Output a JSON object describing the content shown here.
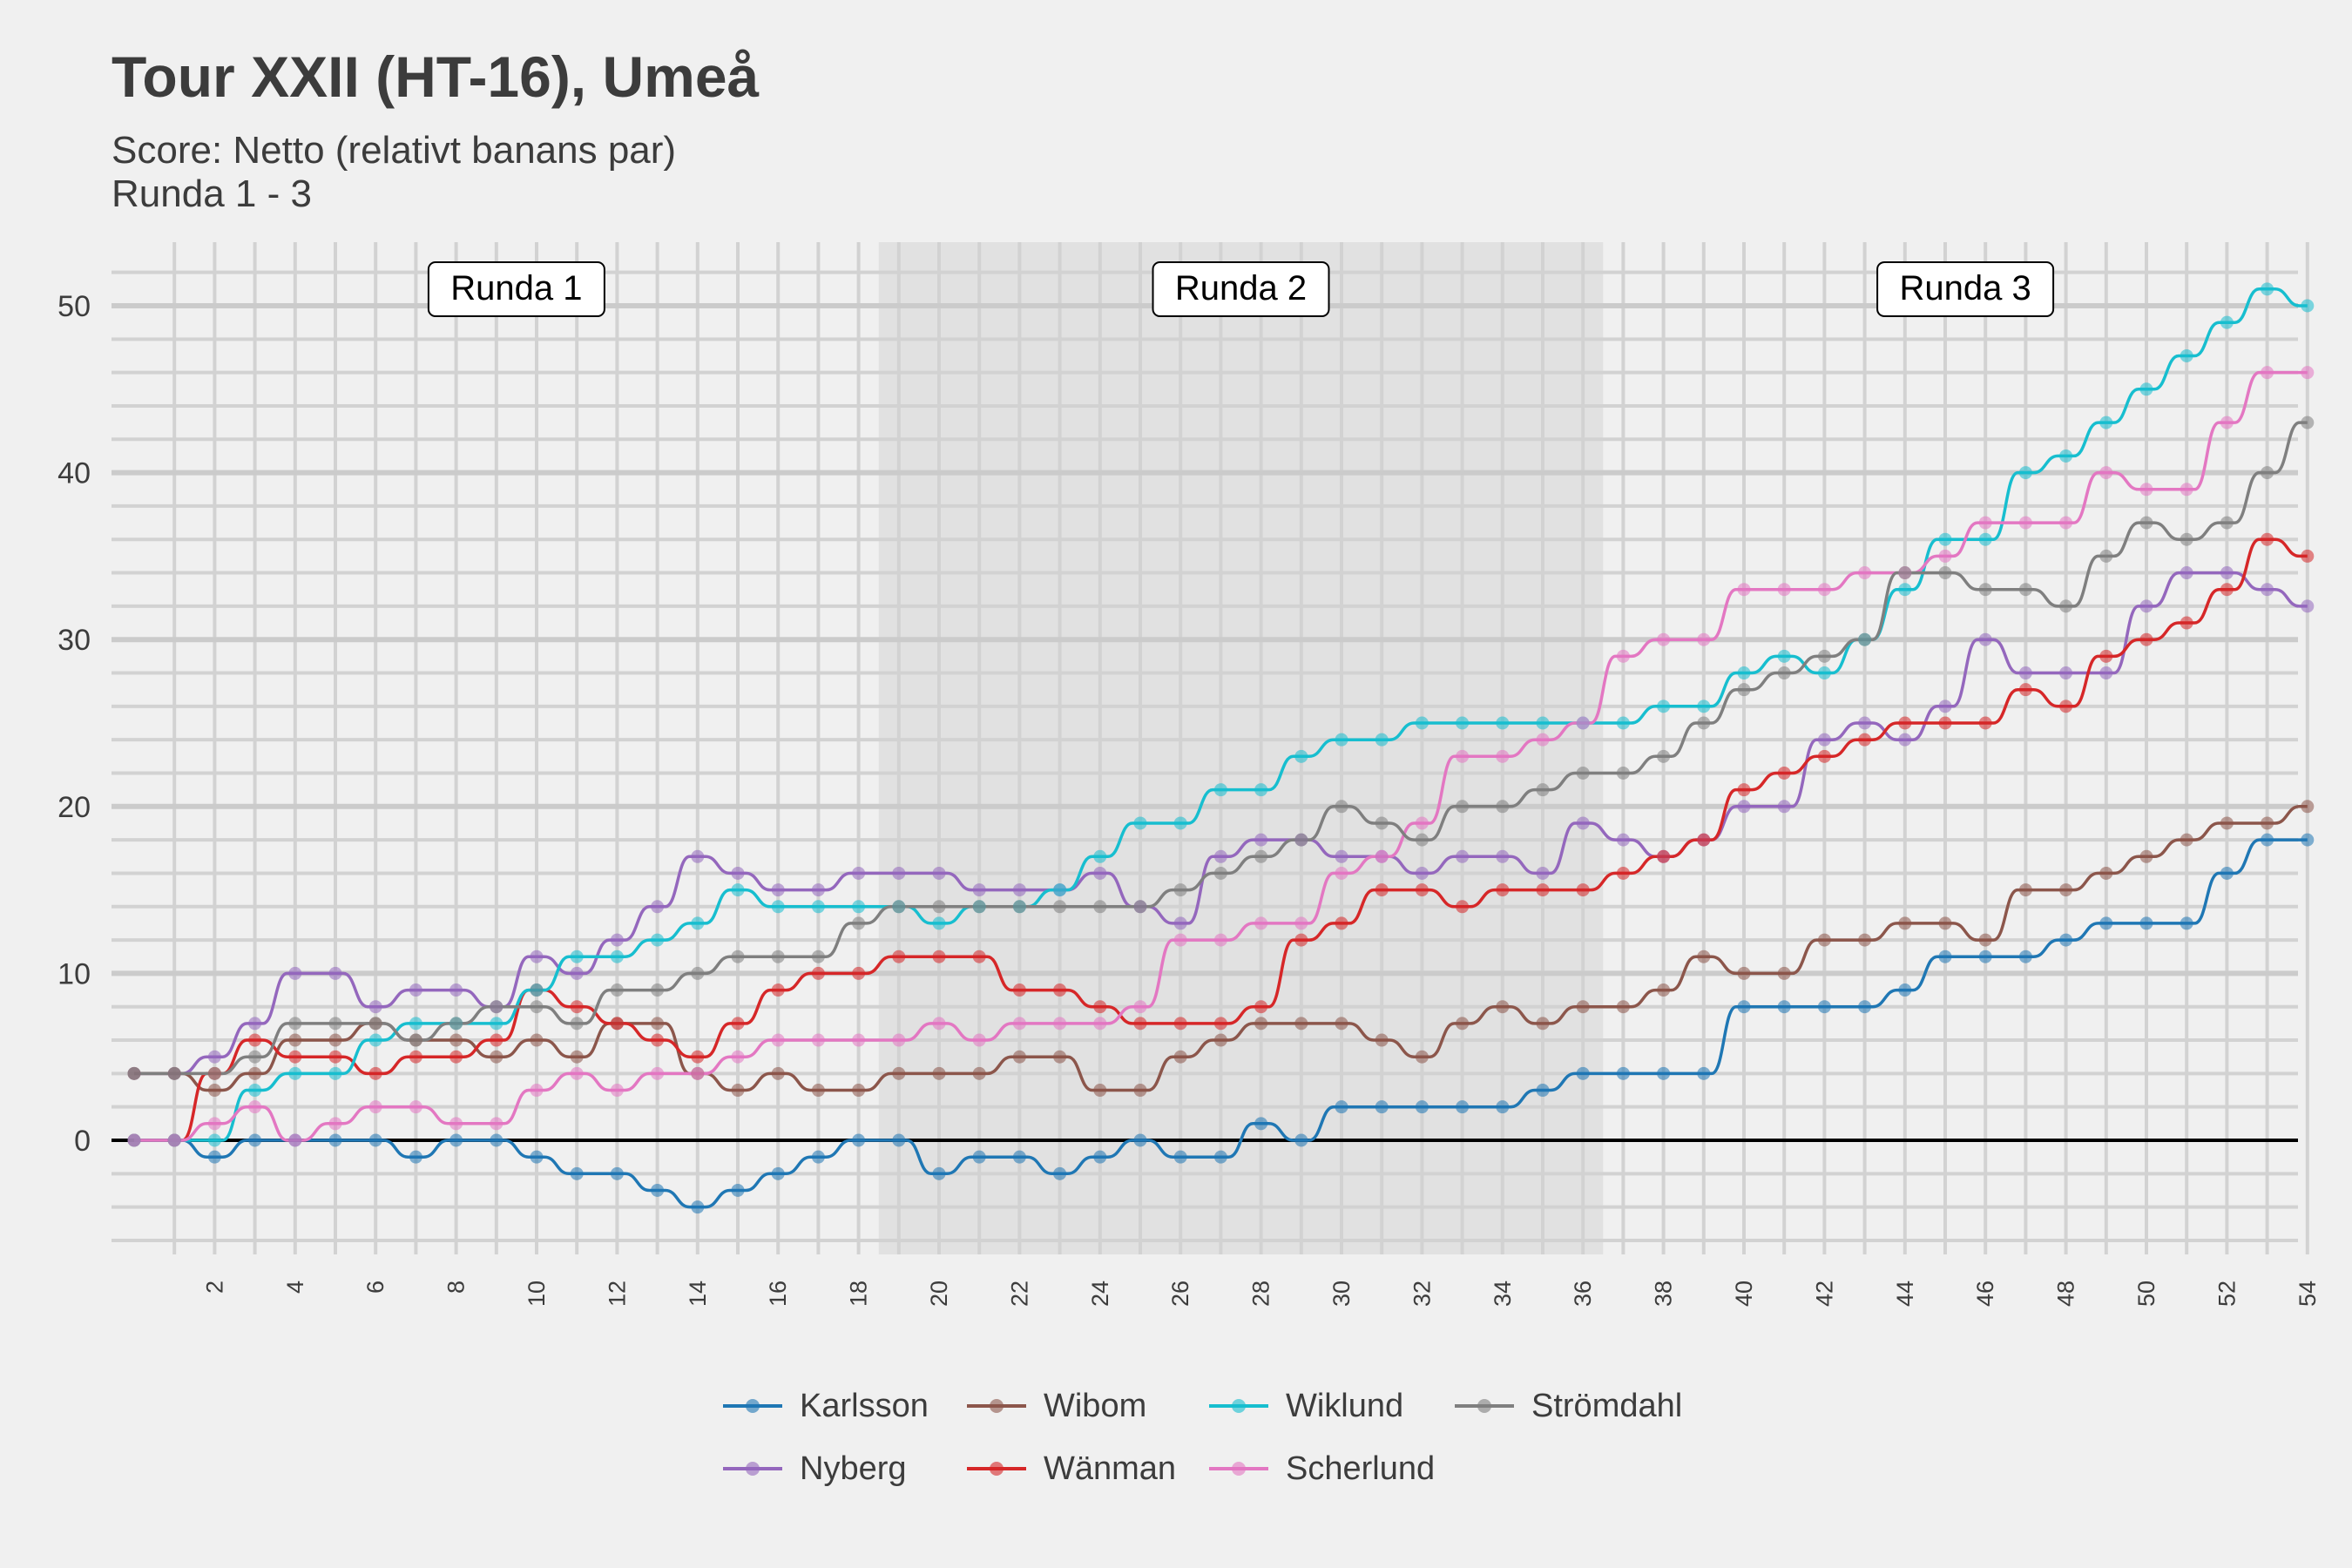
{
  "chart_data": {
    "type": "line",
    "title": "Tour XXII (HT-16), Umeå",
    "subtitle": [
      "Score: Netto (relativt banans par)",
      "Runda 1 - 3"
    ],
    "xlabel": "",
    "ylabel": "",
    "xlim": [
      0,
      55
    ],
    "ylim": [
      -6,
      53
    ],
    "x_ticks": [
      2,
      4,
      6,
      8,
      10,
      12,
      14,
      16,
      18,
      20,
      22,
      24,
      26,
      28,
      30,
      32,
      34,
      36,
      38,
      40,
      42,
      44,
      46,
      48,
      50,
      52,
      54
    ],
    "y_ticks": [
      0,
      10,
      20,
      30,
      40,
      50
    ],
    "grid": true,
    "legend_position": "bottom",
    "rounds": [
      {
        "label": "Runda 1",
        "start": 0.5,
        "end": 18.5,
        "shaded": false
      },
      {
        "label": "Runda 2",
        "start": 18.5,
        "end": 36.5,
        "shaded": true
      },
      {
        "label": "Runda 3",
        "start": 36.5,
        "end": 54.5,
        "shaded": false
      }
    ],
    "x": [
      0,
      1,
      2,
      3,
      4,
      5,
      6,
      7,
      8,
      9,
      10,
      11,
      12,
      13,
      14,
      15,
      16,
      17,
      18,
      19,
      20,
      21,
      22,
      23,
      24,
      25,
      26,
      27,
      28,
      29,
      30,
      31,
      32,
      33,
      34,
      35,
      36,
      37,
      38,
      39,
      40,
      41,
      42,
      43,
      44,
      45,
      46,
      47,
      48,
      49,
      50,
      51,
      52,
      53,
      54
    ],
    "series": [
      {
        "name": "Karlsson",
        "color": "#1f77b4",
        "values": [
          0,
          0,
          -1,
          0,
          0,
          0,
          0,
          -1,
          0,
          0,
          -1,
          -2,
          -2,
          -3,
          -4,
          -3,
          -2,
          -1,
          0,
          0,
          -2,
          -1,
          -1,
          -2,
          -1,
          0,
          -1,
          -1,
          1,
          0,
          2,
          2,
          2,
          2,
          2,
          3,
          4,
          4,
          4,
          4,
          8,
          8,
          8,
          8,
          9,
          11,
          11,
          11,
          12,
          13,
          13,
          13,
          16,
          18,
          18
        ]
      },
      {
        "name": "Nyberg",
        "color": "#9467bd",
        "values": [
          4,
          4,
          5,
          7,
          10,
          10,
          8,
          9,
          9,
          8,
          11,
          10,
          12,
          14,
          17,
          16,
          15,
          15,
          16,
          16,
          16,
          15,
          15,
          15,
          16,
          14,
          13,
          17,
          18,
          18,
          17,
          17,
          16,
          17,
          17,
          16,
          19,
          18,
          17,
          18,
          20,
          20,
          24,
          25,
          24,
          26,
          30,
          28,
          28,
          28,
          32,
          34,
          34,
          33,
          32
        ]
      },
      {
        "name": "Wibom",
        "color": "#8c564b",
        "values": [
          4,
          4,
          3,
          4,
          6,
          6,
          7,
          6,
          6,
          5,
          6,
          5,
          7,
          7,
          4,
          3,
          4,
          3,
          3,
          4,
          4,
          4,
          5,
          5,
          3,
          3,
          5,
          6,
          7,
          7,
          7,
          6,
          5,
          7,
          8,
          7,
          8,
          8,
          9,
          11,
          10,
          10,
          12,
          12,
          13,
          13,
          12,
          15,
          15,
          16,
          17,
          18,
          19,
          19,
          20
        ]
      },
      {
        "name": "Wänman",
        "color": "#d62728",
        "values": [
          0,
          0,
          4,
          6,
          5,
          5,
          4,
          5,
          5,
          6,
          9,
          8,
          7,
          6,
          5,
          7,
          9,
          10,
          10,
          11,
          11,
          11,
          9,
          9,
          8,
          7,
          7,
          7,
          8,
          12,
          13,
          15,
          15,
          14,
          15,
          15,
          15,
          16,
          17,
          18,
          21,
          22,
          23,
          24,
          25,
          25,
          25,
          27,
          26,
          29,
          30,
          31,
          33,
          36,
          35
        ]
      },
      {
        "name": "Wiklund",
        "color": "#17becf",
        "values": [
          0,
          0,
          0,
          3,
          4,
          4,
          6,
          7,
          7,
          7,
          9,
          11,
          11,
          12,
          13,
          15,
          14,
          14,
          14,
          14,
          13,
          14,
          14,
          15,
          17,
          19,
          19,
          21,
          21,
          23,
          24,
          24,
          25,
          25,
          25,
          25,
          25,
          25,
          26,
          26,
          28,
          29,
          28,
          30,
          33,
          36,
          36,
          40,
          41,
          43,
          45,
          47,
          49,
          51,
          50
        ]
      },
      {
        "name": "Scherlund",
        "color": "#e377c2",
        "values": [
          0,
          0,
          1,
          2,
          0,
          1,
          2,
          2,
          1,
          1,
          3,
          4,
          3,
          4,
          4,
          5,
          6,
          6,
          6,
          6,
          7,
          6,
          7,
          7,
          7,
          8,
          12,
          12,
          13,
          13,
          16,
          17,
          19,
          23,
          23,
          24,
          25,
          29,
          30,
          30,
          33,
          33,
          33,
          34,
          34,
          35,
          37,
          37,
          37,
          40,
          39,
          39,
          43,
          46,
          46
        ]
      },
      {
        "name": "Strömdahl",
        "color": "#7f7f7f",
        "values": [
          4,
          4,
          4,
          5,
          7,
          7,
          7,
          6,
          7,
          8,
          8,
          7,
          9,
          9,
          10,
          11,
          11,
          11,
          13,
          14,
          14,
          14,
          14,
          14,
          14,
          14,
          15,
          16,
          17,
          18,
          20,
          19,
          18,
          20,
          20,
          21,
          22,
          22,
          23,
          25,
          27,
          28,
          29,
          30,
          34,
          34,
          33,
          33,
          32,
          35,
          37,
          36,
          37,
          40,
          43
        ]
      }
    ]
  }
}
